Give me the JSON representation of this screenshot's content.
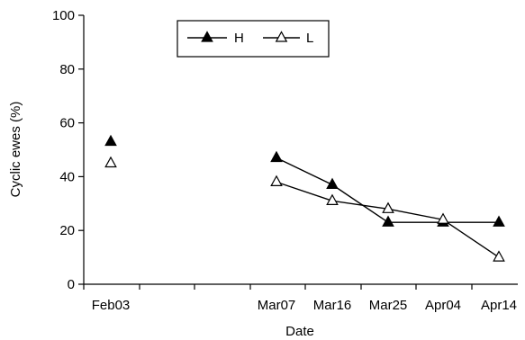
{
  "chart_data": {
    "type": "line",
    "xlabel": "Date",
    "ylabel": "Cyclic ewes (%)",
    "ylim": [
      0,
      100
    ],
    "yticks": [
      0,
      20,
      40,
      60,
      80,
      100
    ],
    "x_tick_labels": [
      "Feb03",
      "Mar07",
      "Mar16",
      "Mar25",
      "Apr04",
      "Apr14"
    ],
    "x_major_tick_count": 8,
    "legend": {
      "placement": "top-left inside plot",
      "entries": [
        "H",
        "L"
      ]
    },
    "series": [
      {
        "name": "H",
        "marker": "filled-triangle",
        "color": "#000000",
        "points": [
          {
            "x": "Feb03",
            "y": 53,
            "connected": false
          },
          {
            "x": "Mar07",
            "y": 47,
            "connected": true
          },
          {
            "x": "Mar16",
            "y": 37,
            "connected": true
          },
          {
            "x": "Mar25",
            "y": 23,
            "connected": true
          },
          {
            "x": "Apr04",
            "y": 23,
            "connected": true
          },
          {
            "x": "Apr14",
            "y": 23,
            "connected": true
          }
        ]
      },
      {
        "name": "L",
        "marker": "open-triangle",
        "color": "#000000",
        "points": [
          {
            "x": "Feb03",
            "y": 45,
            "connected": false
          },
          {
            "x": "Mar07",
            "y": 38,
            "connected": true
          },
          {
            "x": "Mar16",
            "y": 31,
            "connected": true
          },
          {
            "x": "Mar25",
            "y": 28,
            "connected": true
          },
          {
            "x": "Apr04",
            "y": 24,
            "connected": true
          },
          {
            "x": "Apr14",
            "y": 10,
            "connected": true
          }
        ]
      }
    ]
  }
}
